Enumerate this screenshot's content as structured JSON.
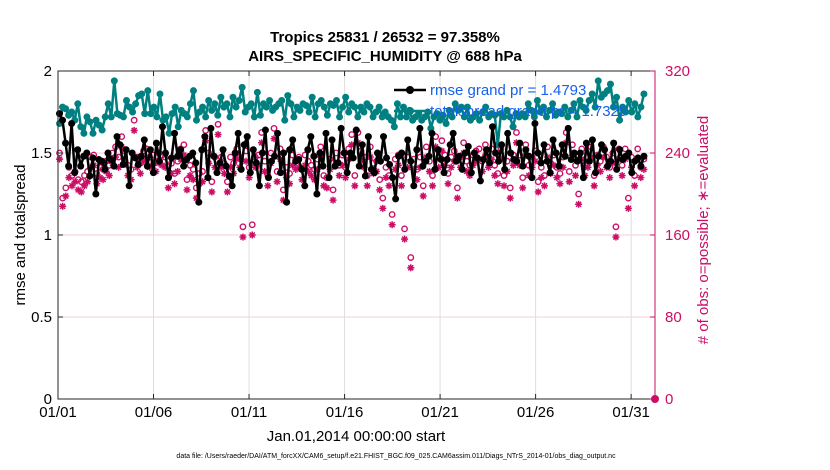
{
  "chart_data": {
    "type": "line",
    "title": "Tropics 25831 / 26532 = 97.358%",
    "subtitle": "AIRS_SPECIFIC_HUMIDITY @ 688 hPa",
    "xlabel": "Jan.01,2014 00:00:00 start",
    "ylabel": "rmse and totalspread",
    "y2label": "# of obs: o=possible; ∗=evaluated",
    "ylim": [
      0,
      2
    ],
    "y2lim": [
      0,
      320
    ],
    "xlim": [
      1,
      32.25
    ],
    "x_ticks": [
      1,
      6,
      11,
      16,
      21,
      26,
      31
    ],
    "x_tick_labels": [
      "01/01",
      "01/06",
      "01/11",
      "01/16",
      "01/21",
      "01/26",
      "01/31"
    ],
    "y_ticks": [
      0,
      0.5,
      1,
      1.5,
      2
    ],
    "y_tick_labels": [
      "0",
      "0.5",
      "1",
      "1.5",
      "2"
    ],
    "y2_ticks": [
      0,
      80,
      160,
      240,
      320
    ],
    "y2_tick_labels": [
      "0",
      "80",
      "160",
      "240",
      "320"
    ],
    "grid": true,
    "legend_position": "top-right",
    "footnote": "data file: /Users/raeder/DAI/ATM_forcXX/CAM6_setup/f.e21.FHIST_BGC.f09_025.CAM6assim.011/Diags_NTrS_2014-01/obs_diag_output.nc",
    "series": [
      {
        "name": "rmse grand pr = 1.4793",
        "color": "#000000",
        "marker": "filled-circle",
        "values": [
          1.74,
          1.7,
          1.56,
          1.42,
          1.68,
          1.38,
          1.52,
          1.42,
          1.48,
          1.5,
          1.36,
          1.47,
          1.25,
          1.46,
          1.45,
          1.4,
          1.5,
          1.46,
          1.42,
          1.6,
          1.55,
          1.43,
          1.52,
          1.3,
          1.5,
          1.47,
          1.43,
          1.48,
          1.58,
          1.42,
          1.52,
          1.38,
          1.56,
          1.45,
          1.66,
          1.5,
          1.35,
          1.47,
          1.62,
          1.48,
          1.52,
          1.42,
          1.46,
          1.48,
          1.5,
          1.44,
          1.2,
          1.52,
          1.6,
          1.35,
          1.65,
          1.48,
          1.38,
          1.44,
          1.52,
          1.42,
          1.36,
          1.3,
          1.5,
          1.62,
          1.4,
          1.55,
          1.6,
          1.38,
          1.52,
          1.44,
          1.3,
          1.5,
          1.64,
          1.35,
          1.45,
          1.48,
          1.62,
          1.38,
          1.5,
          1.2,
          1.52,
          1.58,
          1.45,
          1.46,
          1.4,
          1.3,
          1.52,
          1.6,
          1.48,
          1.25,
          1.5,
          1.42,
          1.62,
          1.35,
          1.58,
          1.42,
          1.44,
          1.65,
          1.5,
          1.38,
          1.5,
          1.47,
          1.64,
          1.42,
          1.55,
          1.36,
          1.6,
          1.4,
          1.38,
          1.5,
          1.45,
          1.6,
          1.47,
          1.43,
          1.35,
          1.22,
          1.48,
          1.5,
          1.4,
          1.58,
          1.45,
          1.3,
          1.52,
          1.65,
          1.42,
          1.45,
          1.48,
          1.62,
          1.4,
          1.52,
          1.46,
          1.38,
          1.46,
          1.55,
          1.62,
          1.45,
          1.48,
          1.4,
          1.5,
          1.54,
          1.38,
          1.5,
          1.47,
          1.33,
          1.46,
          1.52,
          1.44,
          1.66,
          1.5,
          1.45,
          1.55,
          1.4,
          1.62,
          1.5,
          1.46,
          1.45,
          1.56,
          1.42,
          1.52,
          1.48,
          1.35,
          1.68,
          1.5,
          1.44,
          1.55,
          1.45,
          1.38,
          1.58,
          1.5,
          1.42,
          1.55,
          1.48,
          1.65,
          1.46,
          1.5,
          1.45,
          1.5,
          1.35,
          1.56,
          1.45,
          1.58,
          1.38,
          1.48,
          1.55,
          1.52,
          1.42,
          1.45,
          1.56,
          1.4,
          1.52,
          1.46,
          1.48,
          1.5,
          1.38,
          1.45,
          1.47,
          1.42,
          1.48
        ]
      },
      {
        "name": "totalspread grand pr = 1.7329",
        "color": "#008080",
        "marker": "filled-circle",
        "values": [
          1.68,
          1.78,
          1.77,
          1.73,
          1.75,
          1.7,
          1.8,
          1.66,
          1.62,
          1.72,
          1.69,
          1.62,
          1.7,
          1.67,
          1.64,
          1.72,
          1.8,
          1.72,
          1.94,
          1.74,
          1.73,
          1.72,
          1.82,
          1.78,
          1.75,
          1.8,
          1.85,
          1.86,
          1.74,
          1.88,
          1.74,
          1.78,
          1.72,
          1.86,
          1.7,
          1.72,
          1.62,
          1.74,
          1.78,
          1.66,
          1.76,
          1.74,
          1.72,
          1.8,
          1.88,
          1.7,
          1.75,
          1.78,
          1.72,
          1.82,
          1.76,
          1.8,
          1.73,
          1.84,
          1.78,
          1.8,
          1.72,
          1.84,
          1.78,
          1.82,
          1.9,
          1.75,
          1.78,
          1.8,
          1.72,
          1.87,
          1.73,
          1.8,
          1.78,
          1.82,
          1.76,
          1.78,
          1.8,
          1.82,
          1.7,
          1.85,
          1.8,
          1.72,
          1.78,
          1.76,
          1.8,
          1.79,
          1.75,
          1.84,
          1.72,
          1.8,
          1.82,
          1.78,
          1.73,
          1.8,
          1.79,
          1.82,
          1.72,
          1.78,
          1.84,
          1.75,
          1.8,
          1.78,
          1.72,
          1.78,
          1.75,
          1.8,
          1.78,
          1.72,
          1.75,
          1.78,
          1.72,
          1.75,
          1.72,
          1.7,
          1.66,
          1.8,
          1.72,
          1.78,
          1.72,
          1.76,
          1.7,
          1.72,
          1.74,
          1.7,
          1.72,
          1.75,
          1.65,
          1.72,
          1.74,
          1.7,
          1.73,
          1.68,
          1.76,
          1.72,
          1.8,
          1.76,
          1.78,
          1.72,
          1.78,
          1.7,
          1.72,
          1.74,
          1.7,
          1.75,
          1.78,
          1.72,
          1.74,
          1.73,
          1.55,
          1.74,
          1.72,
          1.76,
          1.72,
          1.66,
          1.74,
          1.72,
          1.74,
          1.72,
          1.8,
          1.76,
          1.72,
          1.82,
          1.75,
          1.78,
          1.72,
          1.76,
          1.8,
          1.73,
          1.75,
          1.74,
          1.78,
          1.72,
          1.76,
          1.8,
          1.72,
          1.82,
          1.78,
          1.76,
          1.82,
          1.86,
          1.78,
          1.94,
          1.84,
          1.86,
          1.88,
          1.92,
          1.78,
          1.84,
          1.7,
          1.78,
          1.75,
          1.82,
          1.75,
          1.8,
          1.72,
          1.78,
          1.86
        ]
      },
      {
        "name": "# obs possible",
        "axis": "right",
        "color": "#cc0d66",
        "marker": "open-circle",
        "values": [
          240,
          196,
          206,
          226,
          218,
          222,
          214,
          212,
          218,
          222,
          236,
          238,
          220,
          226,
          224,
          232,
          228,
          240,
          246,
          236,
          256,
          242,
          228,
          224,
          272,
          236,
          230,
          242,
          244,
          236,
          238,
          232,
          240,
          238,
          236,
          216,
          230,
          220,
          232,
          244,
          248,
          214,
          228,
          224,
          206,
          220,
          222,
          262,
          240,
          212,
          236,
          268,
          236,
          230,
          212,
          236,
          230,
          244,
          236,
          168,
          242,
          226,
          170,
          236,
          238,
          260,
          232,
          218,
          240,
          264,
          222,
          244,
          204,
          226,
          220,
          238,
          234,
          236,
          224,
          238,
          232,
          228,
          224,
          234,
          246,
          218,
          216,
          234,
          204,
          240,
          228,
          238,
          226,
          244,
          258,
          218,
          260,
          242,
          236,
          218,
          246,
          230,
          232,
          214,
          196,
          226,
          218,
          180,
          234,
          238,
          218,
          166,
          236,
          138,
          234,
          224,
          236,
          208,
          246,
          232,
          218,
          256,
          236,
          252,
          238,
          220,
          236,
          242,
          206,
          236,
          250,
          232,
          228,
          238,
          242,
          244,
          232,
          248,
          236,
          244,
          228,
          220,
          244,
          218,
          232,
          206,
          238,
          260,
          238,
          216,
          248,
          228,
          236,
          242,
          212,
          226,
          218,
          246,
          230,
          238,
          226,
          220,
          236,
          260,
          222,
          248,
          228,
          200,
          244,
          228,
          236,
          246,
          218,
          238,
          232,
          246,
          236,
          226,
          240,
          168,
          244,
          228,
          244,
          196,
          236,
          218,
          244,
          226,
          234
        ]
      },
      {
        "name": "# obs evaluated",
        "axis": "right",
        "color": "#cc0d66",
        "marker": "asterisk",
        "values": [
          234,
          188,
          198,
          216,
          208,
          212,
          204,
          202,
          208,
          212,
          226,
          228,
          210,
          216,
          214,
          222,
          218,
          230,
          236,
          226,
          246,
          232,
          218,
          214,
          262,
          226,
          220,
          232,
          234,
          226,
          228,
          222,
          230,
          228,
          226,
          206,
          220,
          210,
          222,
          234,
          238,
          204,
          218,
          214,
          196,
          210,
          212,
          252,
          230,
          202,
          226,
          258,
          226,
          220,
          202,
          226,
          220,
          234,
          226,
          158,
          232,
          216,
          160,
          226,
          228,
          250,
          222,
          208,
          230,
          254,
          212,
          234,
          194,
          216,
          210,
          228,
          224,
          226,
          214,
          228,
          222,
          218,
          214,
          224,
          236,
          208,
          206,
          224,
          194,
          230,
          218,
          228,
          216,
          234,
          248,
          208,
          250,
          232,
          226,
          208,
          236,
          220,
          222,
          204,
          186,
          216,
          208,
          170,
          224,
          228,
          208,
          156,
          226,
          128,
          224,
          214,
          226,
          198,
          236,
          222,
          208,
          246,
          226,
          242,
          228,
          210,
          226,
          232,
          196,
          226,
          240,
          222,
          218,
          228,
          232,
          234,
          222,
          238,
          226,
          234,
          218,
          210,
          234,
          208,
          222,
          196,
          228,
          250,
          228,
          206,
          238,
          218,
          226,
          232,
          202,
          216,
          208,
          236,
          220,
          228,
          216,
          210,
          226,
          250,
          212,
          238,
          218,
          190,
          234,
          218,
          226,
          236,
          208,
          228,
          222,
          236,
          226,
          216,
          230,
          158,
          234,
          218,
          234,
          186,
          226,
          208,
          234,
          216,
          224
        ]
      }
    ]
  }
}
